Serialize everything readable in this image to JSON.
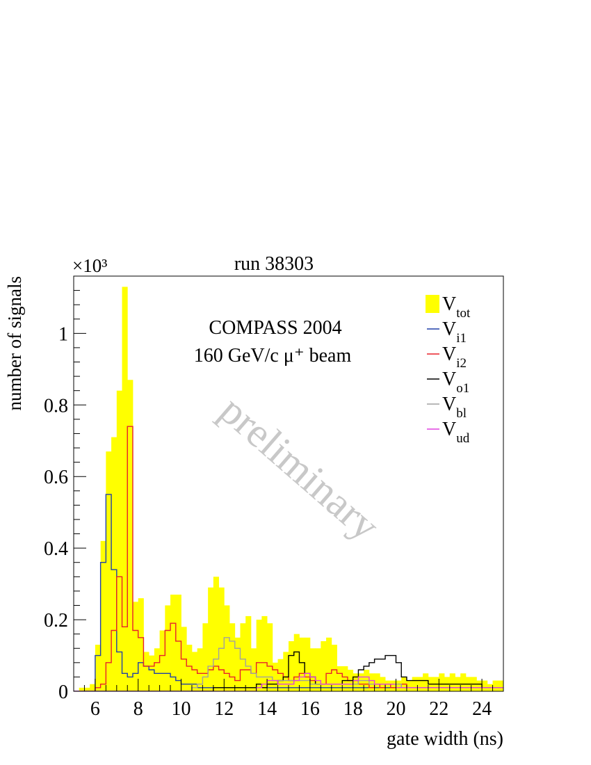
{
  "chart_data": {
    "type": "histogram",
    "title": "run 38303",
    "xlabel": "gate width (ns)",
    "ylabel": "number of signals",
    "y_scale_label": "×10³",
    "xlim": [
      5.0,
      25.0
    ],
    "ylim": [
      0,
      1.16
    ],
    "bin_width": 0.25,
    "x_ticks": [
      6,
      8,
      10,
      12,
      14,
      16,
      18,
      20,
      22,
      24
    ],
    "x_tick_labels": [
      "6",
      "8",
      "10",
      "12",
      "14",
      "16",
      "18",
      "20",
      "22",
      "24"
    ],
    "y_ticks": [
      0,
      0.2,
      0.4,
      0.6,
      0.8,
      1
    ],
    "y_tick_labels": [
      "0",
      "0.2",
      "0.4",
      "0.6",
      "0.8",
      "1"
    ],
    "annotations": [
      "COMPASS 2004",
      "160 GeV/c  μ⁺ beam"
    ],
    "watermark": "preliminary",
    "legend_position": "top-right",
    "series": [
      {
        "name": "V",
        "sub": "tot",
        "style": "filled",
        "color": "#ffff00",
        "values": [
          0,
          0.01,
          0.01,
          0.02,
          0.13,
          0.42,
          0.67,
          0.71,
          0.84,
          1.13,
          0.87,
          0.25,
          0.26,
          0.11,
          0.1,
          0.12,
          0.17,
          0.24,
          0.27,
          0.27,
          0.18,
          0.13,
          0.11,
          0.12,
          0.19,
          0.29,
          0.32,
          0.29,
          0.24,
          0.19,
          0.15,
          0.19,
          0.21,
          0.12,
          0.2,
          0.21,
          0.19,
          0.08,
          0.09,
          0.11,
          0.14,
          0.16,
          0.15,
          0.15,
          0.12,
          0.12,
          0.14,
          0.15,
          0.13,
          0.07,
          0.07,
          0.06,
          0.05,
          0.05,
          0.06,
          0.05,
          0.05,
          0.04,
          0.03,
          0.03,
          0.03,
          0.04,
          0.03,
          0.04,
          0.04,
          0.05,
          0.04,
          0.04,
          0.05,
          0.04,
          0.05,
          0.04,
          0.05,
          0.04,
          0.04,
          0.03,
          0.03,
          0.02,
          0.03,
          0.03,
          0.02,
          0.04
        ]
      },
      {
        "name": "V",
        "sub": "i1",
        "style": "line",
        "color": "#1f3fa8",
        "values": [
          0,
          0,
          0,
          0,
          0.1,
          0.36,
          0.55,
          0.34,
          0.11,
          0.05,
          0.04,
          0.05,
          0.08,
          0.07,
          0.06,
          0.05,
          0.05,
          0.05,
          0.04,
          0.03,
          0.02,
          0.02,
          0.02,
          0.01,
          0.01,
          0.01,
          0.01,
          0.01,
          0.01,
          0.01,
          0.01,
          0.01,
          0.01,
          0.01,
          0.01,
          0.01,
          0.01,
          0.01,
          0.01,
          0.01,
          0.01,
          0.01,
          0.01,
          0.01,
          0.01,
          0.01,
          0.01,
          0.01,
          0.01,
          0.01,
          0.01,
          0.01,
          0.01,
          0.01,
          0.01,
          0.01,
          0.01,
          0.01,
          0.01,
          0.01,
          0.01,
          0.01,
          0.01,
          0.01,
          0.01,
          0.01,
          0.01,
          0.01,
          0.01,
          0.01,
          0.01,
          0.01,
          0.01,
          0.01,
          0.01,
          0.01,
          0.01,
          0.01,
          0.01,
          0.01,
          0.01,
          0.01
        ]
      },
      {
        "name": "V",
        "sub": "i2",
        "style": "line",
        "color": "#e8202a",
        "values": [
          0,
          0,
          0,
          0,
          0.01,
          0.02,
          0.08,
          0.17,
          0.32,
          0.18,
          0.74,
          0.17,
          0.15,
          0.07,
          0.07,
          0.08,
          0.1,
          0.17,
          0.19,
          0.14,
          0.09,
          0.07,
          0.06,
          0.05,
          0.05,
          0.06,
          0.07,
          0.06,
          0.05,
          0.04,
          0.03,
          0.06,
          0.06,
          0.05,
          0.08,
          0.08,
          0.07,
          0.06,
          0.05,
          0.04,
          0.03,
          0.04,
          0.05,
          0.04,
          0.03,
          0.02,
          0.02,
          0.05,
          0.06,
          0.05,
          0.04,
          0.03,
          0.03,
          0.02,
          0.02,
          0.01,
          0.02,
          0.01,
          0.02,
          0.01,
          0.01,
          0.02,
          0.01,
          0.01,
          0.01,
          0.01,
          0.01,
          0.01,
          0.01,
          0.01,
          0.01,
          0.01,
          0.01,
          0.01,
          0.01,
          0.01,
          0.01,
          0.01,
          0.01,
          0.01,
          0.01,
          0.01
        ]
      },
      {
        "name": "V",
        "sub": "o1",
        "style": "line",
        "color": "#000000",
        "values": [
          0,
          0,
          0,
          0,
          0,
          0,
          0,
          0,
          0,
          0,
          0,
          0,
          0,
          0,
          0,
          0,
          0,
          0,
          0,
          0,
          0,
          0,
          0,
          0,
          0,
          0,
          0.01,
          0.01,
          0.01,
          0.01,
          0.01,
          0.01,
          0.01,
          0.01,
          0.02,
          0.01,
          0.02,
          0.02,
          0.03,
          0.04,
          0.1,
          0.11,
          0.08,
          0.05,
          0.04,
          0.02,
          0.02,
          0.02,
          0.02,
          0.02,
          0.03,
          0.03,
          0.04,
          0.06,
          0.07,
          0.08,
          0.09,
          0.09,
          0.1,
          0.1,
          0.08,
          0.04,
          0.03,
          0.03,
          0.03,
          0.03,
          0.02,
          0.02,
          0.02,
          0.02,
          0.02,
          0.02,
          0.02,
          0.02,
          0.02,
          0.02,
          0.01,
          0.01,
          0.01,
          0.01,
          0.01,
          0.01
        ]
      },
      {
        "name": "V",
        "sub": "bl",
        "style": "line",
        "color": "#a0a0a0",
        "values": [
          0,
          0,
          0,
          0,
          0,
          0,
          0,
          0,
          0,
          0,
          0,
          0,
          0,
          0,
          0,
          0,
          0,
          0,
          0,
          0,
          0,
          0,
          0.01,
          0.02,
          0.04,
          0.07,
          0.09,
          0.12,
          0.15,
          0.14,
          0.12,
          0.09,
          0.07,
          0.05,
          0.04,
          0.04,
          0.04,
          0.03,
          0.03,
          0.03,
          0.03,
          0.03,
          0.03,
          0.03,
          0.02,
          0.02,
          0.02,
          0.02,
          0.02,
          0.02,
          0.02,
          0.02,
          0.02,
          0.03,
          0.03,
          0.02,
          0.02,
          0.02,
          0.02,
          0.02,
          0.02,
          0.01,
          0.01,
          0.01,
          0.01,
          0.01,
          0.01,
          0.01,
          0.01,
          0.01,
          0.01,
          0.01,
          0.01,
          0.01,
          0.01,
          0.01,
          0.01,
          0.01,
          0.01,
          0.01,
          0.01,
          0.01
        ]
      },
      {
        "name": "V",
        "sub": "ud",
        "style": "line",
        "color": "#e040e0",
        "values": [
          0,
          0,
          0,
          0,
          0,
          0,
          0,
          0,
          0,
          0,
          0,
          0,
          0,
          0,
          0,
          0,
          0,
          0,
          0,
          0,
          0,
          0,
          0,
          0,
          0,
          0,
          0,
          0,
          0,
          0,
          0,
          0,
          0,
          0,
          0.01,
          0.02,
          0.03,
          0.03,
          0.02,
          0.02,
          0.02,
          0.03,
          0.04,
          0.05,
          0.04,
          0.03,
          0.02,
          0.02,
          0.02,
          0.02,
          0.02,
          0.02,
          0.03,
          0.04,
          0.04,
          0.03,
          0.02,
          0.02,
          0.02,
          0.02,
          0.01,
          0.01,
          0.01,
          0.01,
          0.01,
          0.01,
          0.01,
          0.01,
          0.01,
          0.01,
          0.01,
          0.01,
          0.01,
          0.01,
          0.01,
          0.01,
          0.01,
          0.01,
          0.01,
          0.01,
          0.01,
          0.01
        ]
      }
    ]
  }
}
